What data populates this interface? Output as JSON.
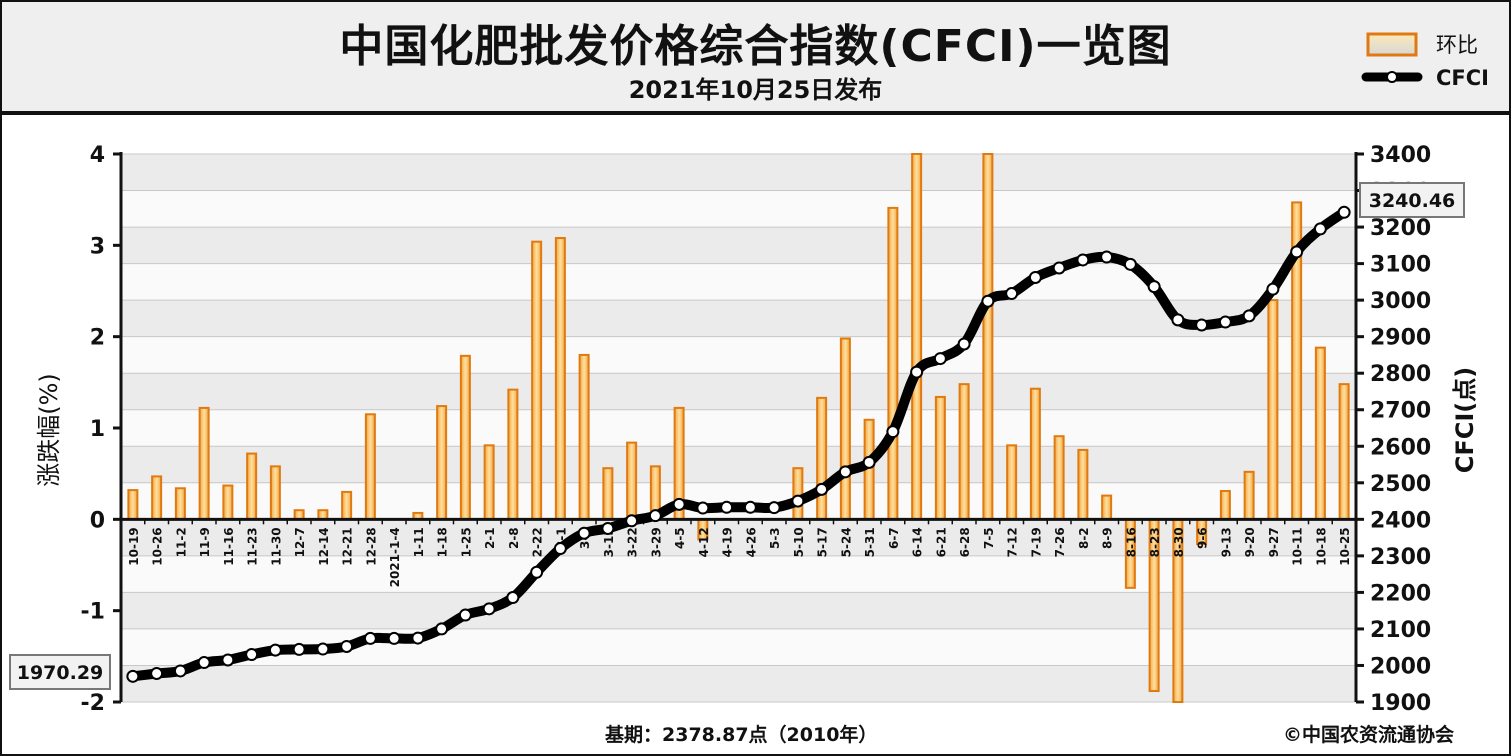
{
  "title": "中国化肥批发价格综合指数(CFCI)一览图",
  "subtitle": "2021年10月25日发布",
  "legend": {
    "bar_label": "环比",
    "line_label": "CFCI"
  },
  "left_axis_label": "涨跌幅(%)",
  "right_axis_label": "CFCI(点)",
  "base_note": "基期：2378.87点（2010年）",
  "copyright": "©中国农资流通协会",
  "callouts": {
    "start": "1970.29",
    "end": "3240.46"
  },
  "colors": {
    "bar_fill": "#f6b451",
    "bar_stroke": "#e07a10",
    "line": "#000000",
    "band": "#ebebeb"
  },
  "chart_data": {
    "type": "bar+line",
    "categories": [
      "10-19",
      "10-26",
      "11-2",
      "11-9",
      "11-16",
      "11-23",
      "11-30",
      "12-7",
      "12-14",
      "12-21",
      "12-28",
      "2021-1-4",
      "1-11",
      "1-18",
      "1-25",
      "2-1",
      "2-8",
      "2-22",
      "3-1",
      "3-8",
      "3-15",
      "3-22",
      "3-29",
      "4-5",
      "4-12",
      "4-19",
      "4-26",
      "5-3",
      "5-10",
      "5-17",
      "5-24",
      "5-31",
      "6-7",
      "6-14",
      "6-21",
      "6-28",
      "7-5",
      "7-12",
      "7-19",
      "7-26",
      "8-2",
      "8-9",
      "8-16",
      "8-23",
      "8-30",
      "9-6",
      "9-13",
      "9-20",
      "9-27",
      "10-11",
      "10-18",
      "10-25"
    ],
    "series": [
      {
        "name": "环比",
        "axis": "left",
        "type": "bar",
        "values": [
          0.32,
          0.47,
          0.34,
          1.22,
          0.37,
          0.72,
          0.58,
          0.1,
          0.1,
          0.3,
          1.15,
          0.0,
          0.07,
          1.24,
          1.79,
          0.81,
          1.42,
          3.04,
          3.08,
          1.8,
          0.56,
          0.84,
          0.58,
          1.22,
          -0.22,
          0.0,
          0.0,
          0.0,
          0.56,
          1.33,
          1.98,
          1.09,
          3.41,
          4.0,
          1.34,
          1.48,
          4.0,
          0.81,
          1.43,
          0.91,
          0.76,
          0.26,
          -0.75,
          -1.88,
          -2.0,
          -0.27,
          0.31,
          0.52,
          2.4,
          3.47,
          1.88,
          1.48
        ]
      },
      {
        "name": "CFCI",
        "axis": "right",
        "type": "line",
        "values": [
          1970.29,
          1978,
          1985,
          2008,
          2015,
          2030,
          2042,
          2044,
          2045,
          2052,
          2074,
          2074,
          2075,
          2100,
          2138,
          2155,
          2186,
          2255,
          2320,
          2362,
          2375,
          2396,
          2410,
          2441,
          2431,
          2433,
          2433,
          2432,
          2450,
          2482,
          2530,
          2556,
          2640,
          2803,
          2840,
          2880,
          2997,
          3018,
          3062,
          3088,
          3110,
          3118,
          3098,
          3037,
          2946,
          2932,
          2940,
          2957,
          3030,
          3132,
          3195,
          3240.46
        ]
      }
    ],
    "left_axis": {
      "ylim": [
        -2,
        4
      ],
      "ticks": [
        "-2",
        "-1",
        "0",
        "1",
        "2",
        "3",
        "4"
      ]
    },
    "right_axis": {
      "ylim": [
        1900,
        3400
      ],
      "ticks": [
        "1900",
        "2000",
        "2100",
        "2200",
        "2300",
        "2400",
        "2500",
        "2600",
        "2700",
        "2800",
        "2900",
        "3000",
        "3100",
        "3200",
        "3300",
        "3400"
      ]
    },
    "grid": true,
    "legend_position": "top-right"
  }
}
